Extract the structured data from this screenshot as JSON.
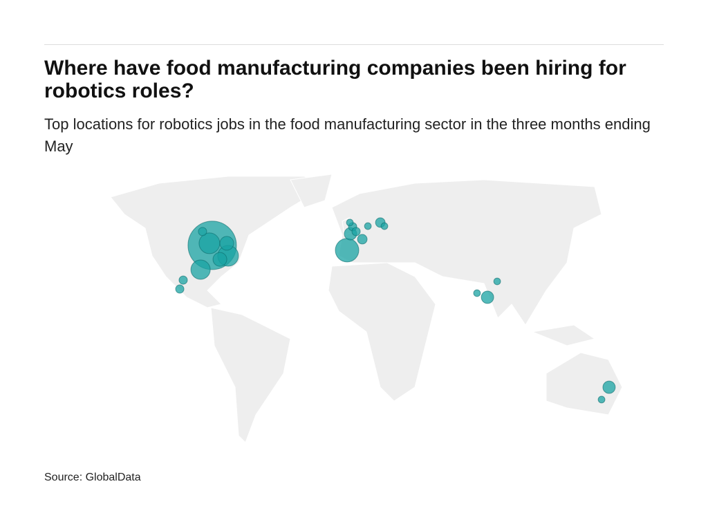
{
  "title": "Where have food manufacturing companies been hiring for robotics roles?",
  "subtitle": "Top locations for robotics jobs in the food manufacturing sector in the three months ending May",
  "source": "Source: GlobalData",
  "chart_data": {
    "type": "bubble-map",
    "color": "#1aa3a3",
    "lon": [
      -91.3,
      -81.6,
      -98.4,
      -93.0,
      -82.4,
      -86.6,
      -97.2,
      -109.0,
      -111.1,
      -9.0,
      -6.9,
      0.3,
      -5.6,
      -3.5,
      -7.3,
      3.7,
      11.3,
      13.8,
      76.7,
      70.3,
      82.6,
      150.9,
      146.3
    ],
    "lat": [
      41.9,
      36.3,
      28.9,
      43.0,
      43.0,
      34.4,
      49.3,
      23.3,
      18.5,
      39.3,
      48.1,
      45.2,
      51.9,
      49.3,
      54.1,
      52.2,
      54.1,
      52.2,
      14.1,
      16.3,
      22.6,
      -34.1,
      -40.7
    ],
    "values": [
      306,
      56,
      49,
      56,
      25,
      25,
      9,
      9,
      9,
      72,
      20,
      12,
      9,
      9,
      6,
      6,
      12,
      6,
      20,
      6,
      6,
      20,
      6
    ]
  }
}
